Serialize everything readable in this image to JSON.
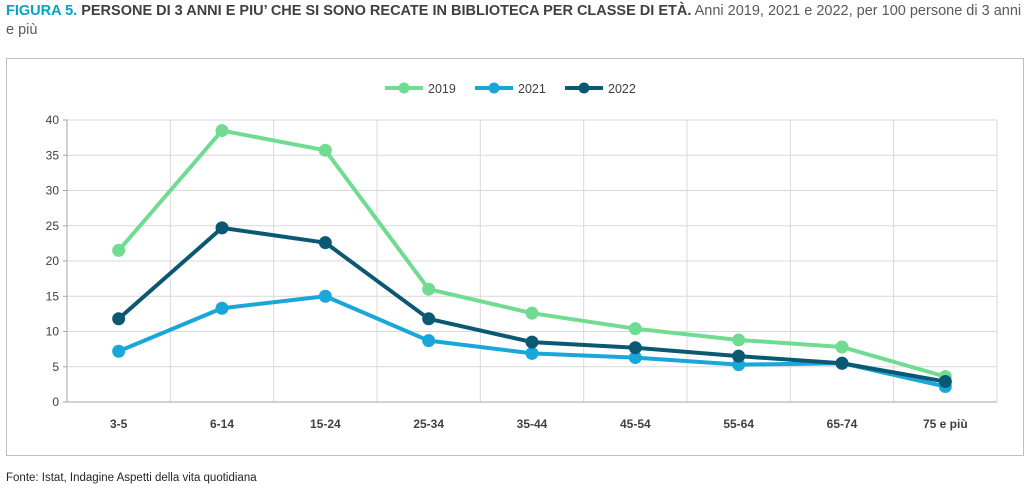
{
  "title": {
    "figure": "FIGURA 5.",
    "main": "PERSONE DI 3 ANNI E PIU’ CHE SI SONO RECATE IN BIBLIOTECA PER CLASSE DI ETÀ.",
    "sub": "Anni 2019, 2021 e 2022, per 100 persone di 3 anni e più"
  },
  "source": "Fonte: Istat, Indagine Aspetti della vita quotidiana",
  "chart_data": {
    "type": "line",
    "categories": [
      "3-5",
      "6-14",
      "15-24",
      "25-34",
      "35-44",
      "45-54",
      "55-64",
      "65-74",
      "75 e più"
    ],
    "series": [
      {
        "name": "2019",
        "color": "#6fdc91",
        "values": [
          21.5,
          38.5,
          35.7,
          16.0,
          12.6,
          10.4,
          8.8,
          7.8,
          3.6
        ]
      },
      {
        "name": "2021",
        "color": "#18a7d8",
        "values": [
          7.2,
          13.3,
          15.0,
          8.7,
          6.9,
          6.3,
          5.3,
          5.5,
          2.2
        ]
      },
      {
        "name": "2022",
        "color": "#0b5873",
        "values": [
          11.8,
          24.7,
          22.6,
          11.8,
          8.5,
          7.7,
          6.5,
          5.5,
          2.9
        ]
      }
    ],
    "ylim": [
      0,
      40
    ],
    "yticks": [
      0,
      5,
      10,
      15,
      20,
      25,
      30,
      35,
      40
    ],
    "grid": true,
    "legend": "top-center",
    "xlabel": "",
    "ylabel": ""
  }
}
